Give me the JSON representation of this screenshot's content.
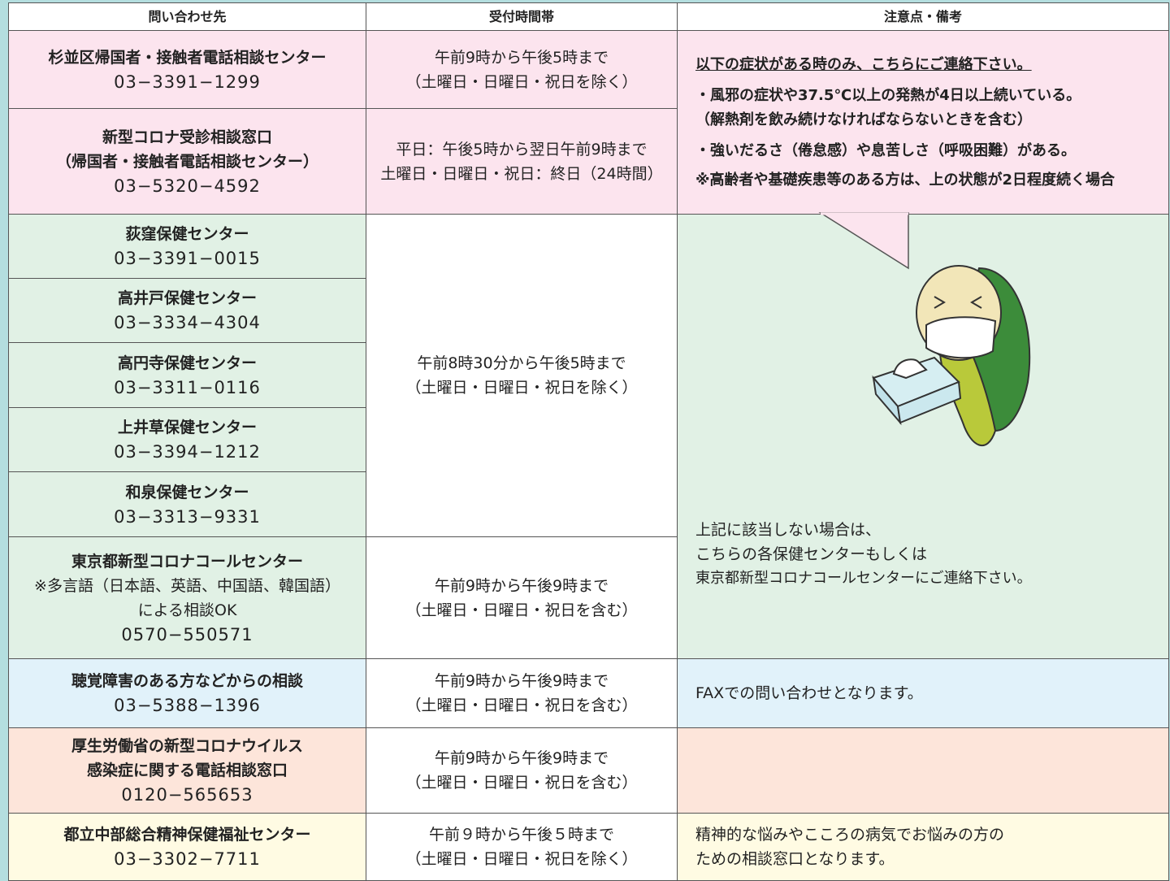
{
  "table": {
    "headers": [
      "問い合わせ先",
      "受付時間帯",
      "注意点・備考"
    ],
    "contacts": [
      {
        "name": [
          "杉並区帰国者・接触者電話相談センター"
        ],
        "phone": "03−3391−1299"
      },
      {
        "name": [
          "新型コロナ受診相談窓口",
          "（帰国者・接触者電話相談センター）"
        ],
        "phone": "03−5320−4592"
      },
      {
        "name": [
          "荻窪保健センター"
        ],
        "phone": "03−3391−0015"
      },
      {
        "name": [
          "高井戸保健センター"
        ],
        "phone": "03−3334−4304"
      },
      {
        "name": [
          "高円寺保健センター"
        ],
        "phone": "03−3311−0116"
      },
      {
        "name": [
          "上井草保健センター"
        ],
        "phone": "03−3394−1212"
      },
      {
        "name": [
          "和泉保健センター"
        ],
        "phone": "03−3313−9331"
      },
      {
        "name": [
          "東京都新型コロナコールセンター",
          "※多言語（日本語、英語、中国語、韓国語）",
          "による相談OK"
        ],
        "phone": "0570−550571"
      },
      {
        "name": [
          "聴覚障害のある方などからの相談"
        ],
        "phone": "03−5388−1396"
      },
      {
        "name": [
          "厚生労働省の新型コロナウイルス",
          "感染症に関する電話相談窓口"
        ],
        "phone": "0120−565653"
      },
      {
        "name": [
          "都立中部総合精神保健福祉センター"
        ],
        "phone": "03−3302−7711"
      }
    ],
    "hours": [
      [
        "午前9時から午後5時まで",
        "（土曜日・日曜日・祝日を除く）"
      ],
      [
        "平日：午後5時から翌日午前9時まで",
        "土曜日・日曜日・祝日：終日（24時間）"
      ],
      [
        "午前8時30分から午後5時まで",
        "（土曜日・日曜日・祝日を除く）"
      ],
      [
        "午前9時から午後9時まで",
        "（土曜日・日曜日・祝日を含む）"
      ],
      [
        "午前9時から午後9時まで",
        "（土曜日・日曜日・祝日を含む）"
      ],
      [
        "午前9時から午後9時まで",
        "（土曜日・日曜日・祝日を含む）"
      ],
      [
        "午前９時から午後５時まで",
        "（土曜日・日曜日・祝日を除く）"
      ]
    ],
    "notes": {
      "symptoms": {
        "heading": "以下の症状がある時のみ、こちらにご連絡下さい。",
        "items": [
          [
            "・風邪の症状や37.5℃以上の発熱が4日以上続いている。",
            "（解熱剤を飲み続けなければならないときを含む）"
          ],
          [
            "・強いだるさ（倦怠感）や息苦しさ（呼吸困難）がある。"
          ]
        ],
        "note": "※高齢者や基礎疾患等のある方は、上の状態が2日程度続く場合"
      },
      "health_centers": [
        "上記に該当しない場合は、",
        "こちらの各保健センターもしくは",
        "東京都新型コロナコールセンターにご連絡下さい。"
      ],
      "fax": "FAXでの問い合わせとなります。",
      "mental": [
        "精神的な悩みやこころの病気でお悩みの方の",
        "ための相談窓口となります。"
      ]
    }
  }
}
